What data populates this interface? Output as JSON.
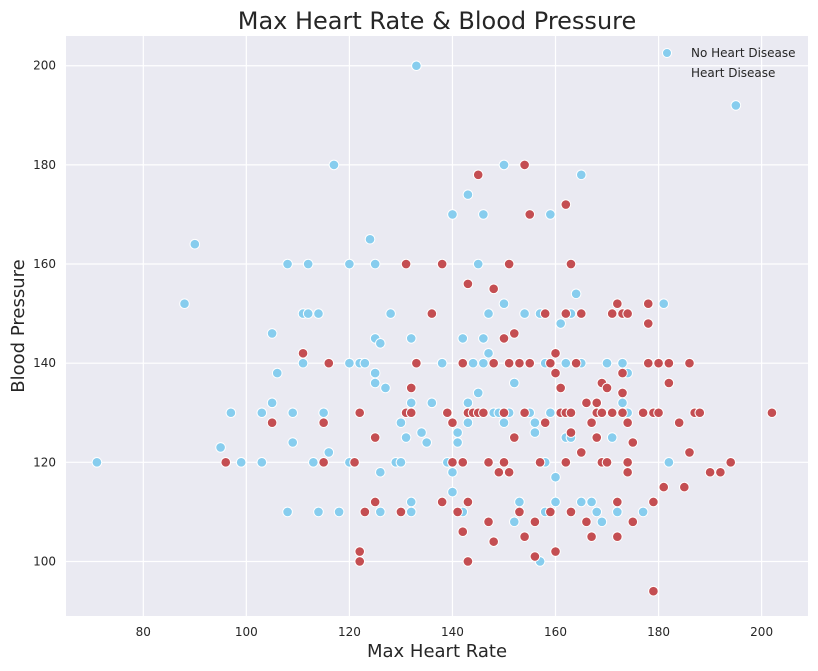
{
  "chart_data": {
    "type": "scatter",
    "title": "Max Heart Rate & Blood Pressure",
    "xlabel": "Max Heart Rate",
    "ylabel": "Blood Pressure",
    "xlim": [
      65,
      209
    ],
    "ylim": [
      89,
      206
    ],
    "xticks": [
      80,
      100,
      120,
      140,
      160,
      180,
      200
    ],
    "yticks": [
      100,
      120,
      140,
      160,
      180,
      200
    ],
    "grid": true,
    "legend_position": "top-right",
    "background": "#eaeaf2",
    "series": [
      {
        "name": "No Heart Disease",
        "color": "#87cdee",
        "points": [
          [
            71,
            120
          ],
          [
            88,
            152
          ],
          [
            90,
            164
          ],
          [
            95,
            123
          ],
          [
            97,
            130
          ],
          [
            99,
            120
          ],
          [
            103,
            130
          ],
          [
            103,
            120
          ],
          [
            105,
            146
          ],
          [
            105,
            132
          ],
          [
            106,
            138
          ],
          [
            108,
            160
          ],
          [
            108,
            110
          ],
          [
            109,
            124
          ],
          [
            109,
            130
          ],
          [
            111,
            150
          ],
          [
            111,
            140
          ],
          [
            112,
            150
          ],
          [
            112,
            160
          ],
          [
            113,
            120
          ],
          [
            114,
            110
          ],
          [
            114,
            150
          ],
          [
            115,
            130
          ],
          [
            116,
            122
          ],
          [
            117,
            180
          ],
          [
            118,
            110
          ],
          [
            120,
            160
          ],
          [
            120,
            140
          ],
          [
            120,
            120
          ],
          [
            122,
            140
          ],
          [
            123,
            140
          ],
          [
            124,
            165
          ],
          [
            125,
            145
          ],
          [
            125,
            160
          ],
          [
            125,
            136
          ],
          [
            125,
            138
          ],
          [
            126,
            144
          ],
          [
            126,
            118
          ],
          [
            126,
            110
          ],
          [
            127,
            135
          ],
          [
            128,
            150
          ],
          [
            129,
            120
          ],
          [
            130,
            120
          ],
          [
            130,
            128
          ],
          [
            131,
            125
          ],
          [
            131,
            130
          ],
          [
            132,
            145
          ],
          [
            132,
            132
          ],
          [
            132,
            112
          ],
          [
            132,
            110
          ],
          [
            133,
            200
          ],
          [
            133,
            140
          ],
          [
            134,
            126
          ],
          [
            135,
            124
          ],
          [
            136,
            132
          ],
          [
            138,
            140
          ],
          [
            139,
            120
          ],
          [
            140,
            170
          ],
          [
            140,
            114
          ],
          [
            140,
            118
          ],
          [
            141,
            126
          ],
          [
            141,
            124
          ],
          [
            142,
            145
          ],
          [
            142,
            110
          ],
          [
            143,
            174
          ],
          [
            143,
            132
          ],
          [
            143,
            128
          ],
          [
            144,
            140
          ],
          [
            145,
            160
          ],
          [
            145,
            134
          ],
          [
            146,
            170
          ],
          [
            146,
            145
          ],
          [
            146,
            140
          ],
          [
            147,
            150
          ],
          [
            147,
            142
          ],
          [
            148,
            130
          ],
          [
            149,
            130
          ],
          [
            150,
            180
          ],
          [
            150,
            152
          ],
          [
            150,
            128
          ],
          [
            151,
            130
          ],
          [
            152,
            136
          ],
          [
            152,
            108
          ],
          [
            153,
            112
          ],
          [
            153,
            140
          ],
          [
            154,
            150
          ],
          [
            155,
            130
          ],
          [
            155,
            140
          ],
          [
            156,
            128
          ],
          [
            156,
            126
          ],
          [
            157,
            150
          ],
          [
            157,
            100
          ],
          [
            158,
            120
          ],
          [
            158,
            140
          ],
          [
            158,
            110
          ],
          [
            159,
            170
          ],
          [
            159,
            130
          ],
          [
            160,
            112
          ],
          [
            160,
            117
          ],
          [
            161,
            148
          ],
          [
            162,
            125
          ],
          [
            162,
            140
          ],
          [
            163,
            150
          ],
          [
            163,
            125
          ],
          [
            164,
            154
          ],
          [
            165,
            178
          ],
          [
            165,
            112
          ],
          [
            165,
            140
          ],
          [
            167,
            112
          ],
          [
            168,
            110
          ],
          [
            168,
            125
          ],
          [
            169,
            130
          ],
          [
            169,
            108
          ],
          [
            170,
            140
          ],
          [
            171,
            125
          ],
          [
            172,
            110
          ],
          [
            173,
            140
          ],
          [
            173,
            132
          ],
          [
            174,
            138
          ],
          [
            174,
            130
          ],
          [
            177,
            110
          ],
          [
            181,
            152
          ],
          [
            182,
            120
          ],
          [
            195,
            192
          ]
        ]
      },
      {
        "name": "Heart Disease",
        "color": "#c44e52",
        "points": [
          [
            96,
            120
          ],
          [
            105,
            128
          ],
          [
            111,
            142
          ],
          [
            115,
            128
          ],
          [
            115,
            120
          ],
          [
            116,
            140
          ],
          [
            121,
            120
          ],
          [
            122,
            130
          ],
          [
            122,
            100
          ],
          [
            122,
            102
          ],
          [
            123,
            110
          ],
          [
            125,
            112
          ],
          [
            125,
            125
          ],
          [
            130,
            110
          ],
          [
            131,
            130
          ],
          [
            131,
            160
          ],
          [
            132,
            135
          ],
          [
            132,
            130
          ],
          [
            133,
            140
          ],
          [
            136,
            150
          ],
          [
            138,
            160
          ],
          [
            138,
            112
          ],
          [
            139,
            130
          ],
          [
            140,
            128
          ],
          [
            140,
            120
          ],
          [
            141,
            110
          ],
          [
            142,
            106
          ],
          [
            142,
            120
          ],
          [
            142,
            140
          ],
          [
            143,
            156
          ],
          [
            143,
            112
          ],
          [
            143,
            130
          ],
          [
            143,
            100
          ],
          [
            144,
            130
          ],
          [
            145,
            178
          ],
          [
            145,
            130
          ],
          [
            146,
            130
          ],
          [
            147,
            120
          ],
          [
            147,
            108
          ],
          [
            148,
            140
          ],
          [
            148,
            155
          ],
          [
            148,
            104
          ],
          [
            149,
            118
          ],
          [
            150,
            145
          ],
          [
            150,
            130
          ],
          [
            150,
            120
          ],
          [
            151,
            160
          ],
          [
            151,
            140
          ],
          [
            151,
            118
          ],
          [
            152,
            146
          ],
          [
            152,
            125
          ],
          [
            153,
            140
          ],
          [
            153,
            110
          ],
          [
            154,
            180
          ],
          [
            154,
            130
          ],
          [
            154,
            105
          ],
          [
            155,
            170
          ],
          [
            155,
            140
          ],
          [
            156,
            101
          ],
          [
            156,
            108
          ],
          [
            157,
            120
          ],
          [
            158,
            128
          ],
          [
            158,
            150
          ],
          [
            159,
            110
          ],
          [
            159,
            140
          ],
          [
            160,
            142
          ],
          [
            160,
            138
          ],
          [
            160,
            102
          ],
          [
            161,
            130
          ],
          [
            161,
            135
          ],
          [
            162,
            172
          ],
          [
            162,
            150
          ],
          [
            162,
            130
          ],
          [
            162,
            120
          ],
          [
            163,
            160
          ],
          [
            163,
            126
          ],
          [
            163,
            130
          ],
          [
            163,
            110
          ],
          [
            164,
            140
          ],
          [
            165,
            150
          ],
          [
            165,
            122
          ],
          [
            166,
            132
          ],
          [
            166,
            108
          ],
          [
            167,
            128
          ],
          [
            167,
            105
          ],
          [
            168,
            132
          ],
          [
            168,
            130
          ],
          [
            168,
            125
          ],
          [
            169,
            136
          ],
          [
            169,
            120
          ],
          [
            169,
            130
          ],
          [
            170,
            135
          ],
          [
            170,
            120
          ],
          [
            171,
            150
          ],
          [
            171,
            130
          ],
          [
            172,
            152
          ],
          [
            172,
            112
          ],
          [
            172,
            105
          ],
          [
            173,
            150
          ],
          [
            173,
            138
          ],
          [
            173,
            134
          ],
          [
            173,
            130
          ],
          [
            174,
            118
          ],
          [
            174,
            150
          ],
          [
            174,
            128
          ],
          [
            174,
            120
          ],
          [
            175,
            124
          ],
          [
            175,
            108
          ],
          [
            177,
            130
          ],
          [
            178,
            152
          ],
          [
            178,
            148
          ],
          [
            178,
            140
          ],
          [
            179,
            94
          ],
          [
            179,
            112
          ],
          [
            179,
            130
          ],
          [
            180,
            140
          ],
          [
            180,
            130
          ],
          [
            181,
            115
          ],
          [
            182,
            140
          ],
          [
            182,
            136
          ],
          [
            184,
            128
          ],
          [
            185,
            115
          ],
          [
            186,
            122
          ],
          [
            186,
            140
          ],
          [
            187,
            130
          ],
          [
            188,
            130
          ],
          [
            190,
            118
          ],
          [
            192,
            118
          ],
          [
            194,
            120
          ],
          [
            202,
            130
          ]
        ]
      }
    ]
  }
}
